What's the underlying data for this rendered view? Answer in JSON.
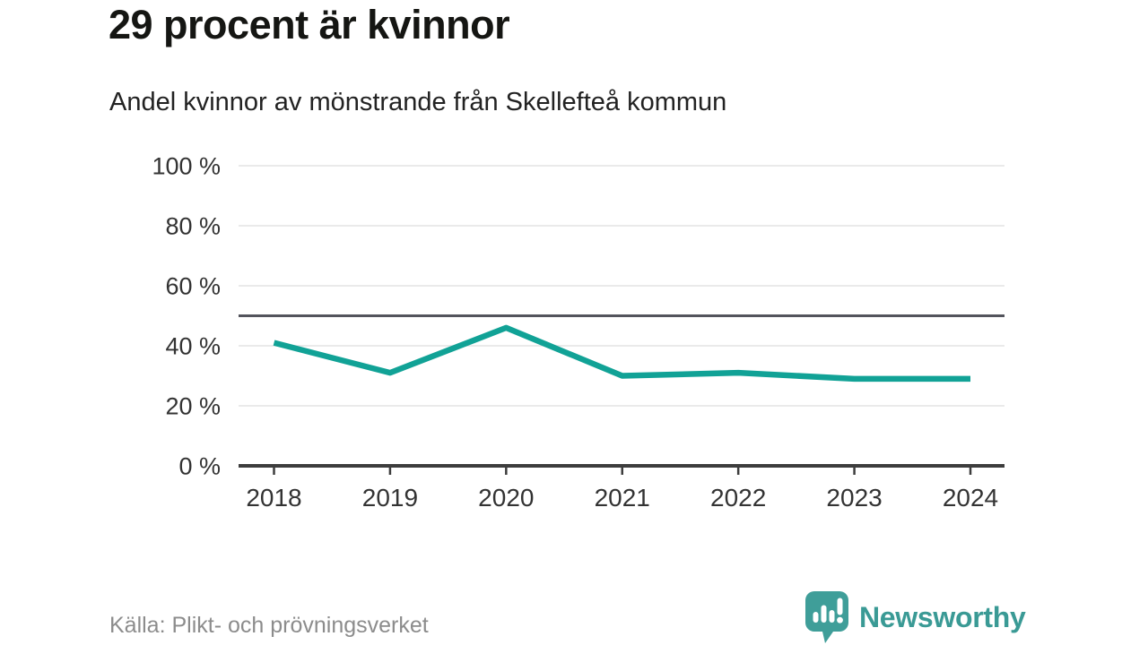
{
  "header": {
    "title": "29 procent är kvinnor",
    "subtitle": "Andel kvinnor av mönstrande från Skellefteå kommun"
  },
  "chart_data": {
    "type": "line",
    "title": "29 procent är kvinnor",
    "subtitle": "Andel kvinnor av mönstrande från Skellefteå kommun",
    "x": [
      2018,
      2019,
      2020,
      2021,
      2022,
      2023,
      2024
    ],
    "series": [
      {
        "name": "Andel kvinnor av mönstrande",
        "values": [
          41,
          31,
          46,
          30,
          31,
          29,
          29
        ]
      }
    ],
    "xlabel": "",
    "ylabel": "",
    "ylim": [
      0,
      100
    ],
    "yticks": [
      0,
      20,
      40,
      60,
      80,
      100
    ],
    "ytick_suffix": " %",
    "reference_line": {
      "value": 50
    },
    "grid": true,
    "legend": "none",
    "colors": {
      "line": "#11a296",
      "grid": "#e3e3e3",
      "axis": "#3d3d3d",
      "reference": "#53545c",
      "tick_label": "#333333"
    }
  },
  "footer": {
    "source": "Källa: Plikt- och prövningsverket",
    "brand": "Newsworthy",
    "brand_color": "#3a9a95",
    "logo_color": "#3f9e99"
  }
}
